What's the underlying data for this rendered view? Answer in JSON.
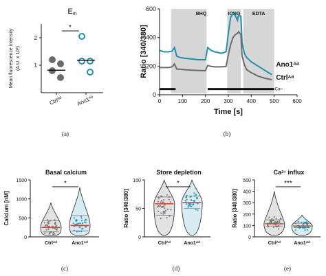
{
  "colors": {
    "ctrl": "#6b6b6b",
    "ano1": "#1f8fb0",
    "shade": "#d6d6d6",
    "median": "#e0403a",
    "axis": "#111111"
  },
  "chart_data": [
    {
      "panel": "(a)",
      "type": "scatter",
      "title": "E",
      "title_sub": "m",
      "ylabel": "Mean fluorescence intensity",
      "ylabel_unit_prefix": "(A.U. x 10",
      "ylabel_unit_exp": "4",
      "ylabel_unit_suffix": ")",
      "ylim": [
        0,
        2.5
      ],
      "yticks": [
        1,
        2
      ],
      "categories": [
        "Ctrl",
        "Ano1"
      ],
      "category_sup": "Ad",
      "series": [
        {
          "category": "Ctrl",
          "values": [
            1.2,
            1.05,
            0.8,
            0.55
          ],
          "median": 0.82,
          "style": "filled"
        },
        {
          "category": "Ano1",
          "values": [
            2.05,
            1.15,
            1.15,
            0.75
          ],
          "median": 1.18,
          "style": "open"
        }
      ],
      "significance": "*"
    },
    {
      "panel": "(b)",
      "type": "line",
      "xlabel": "Time [s]",
      "ylabel": "Ratio [340/380]",
      "xlim": [
        0,
        600
      ],
      "ylim": [
        0,
        600
      ],
      "xticks": [
        0,
        100,
        200,
        300,
        400,
        500,
        600
      ],
      "yticks": [
        0,
        200,
        400,
        600
      ],
      "shaded": [
        {
          "label": "BHQ",
          "from": 50,
          "to": 205
        },
        {
          "label": "IONO",
          "from": 295,
          "to": 355
        },
        {
          "label": "EDTA",
          "from": 365,
          "to": 500
        }
      ],
      "calcium_bars": [
        {
          "from": 0,
          "to": 70
        },
        {
          "from": 210,
          "to": 500
        }
      ],
      "calcium_label": "Ca",
      "calcium_sup": "2+",
      "x": [
        0,
        20,
        40,
        55,
        65,
        75,
        90,
        110,
        140,
        170,
        200,
        210,
        225,
        240,
        270,
        290,
        300,
        310,
        320,
        330,
        340,
        345,
        355,
        360,
        370,
        380,
        400,
        430,
        460,
        490
      ],
      "series": [
        {
          "name": "Ano1",
          "name_sup": "Ad",
          "values": [
            310,
            300,
            300,
            305,
            330,
            270,
            260,
            255,
            250,
            245,
            245,
            330,
            310,
            300,
            290,
            300,
            430,
            540,
            570,
            555,
            520,
            560,
            545,
            360,
            290,
            260,
            230,
            200,
            170,
            140
          ]
        },
        {
          "name": "Ctrl",
          "name_sup": "Ad",
          "values": [
            190,
            190,
            190,
            195,
            215,
            180,
            178,
            175,
            172,
            170,
            168,
            205,
            198,
            195,
            195,
            198,
            280,
            350,
            400,
            420,
            430,
            440,
            420,
            270,
            210,
            175,
            155,
            130,
            115,
            105
          ]
        }
      ]
    },
    {
      "panel": "(c)",
      "type": "violin",
      "title": "Basal calcium",
      "ylabel": "Calcium [nM]",
      "ylim": [
        0,
        1500
      ],
      "yticks": [
        0,
        500,
        1000,
        1500
      ],
      "categories": [
        "Ctrl",
        "Ano1"
      ],
      "category_sup": "Ad",
      "series": [
        {
          "category": "Ctrl",
          "median": 250,
          "q1": 130,
          "q3": 420,
          "max": 900
        },
        {
          "category": "Ano1",
          "median": 300,
          "q1": 160,
          "q3": 560,
          "max": 1300
        }
      ],
      "significance": "*"
    },
    {
      "panel": "(d)",
      "type": "violin",
      "title": "Store depletion",
      "ylabel": "Ratio [340/380]",
      "ylim": [
        0,
        100
      ],
      "yticks": [
        0,
        50,
        100
      ],
      "categories": [
        "Ctrl",
        "Ano1"
      ],
      "category_sup": "Ad",
      "series": [
        {
          "category": "Ctrl",
          "median": 58,
          "q1": 38,
          "q3": 70,
          "max": 100
        },
        {
          "category": "Ano1",
          "median": 60,
          "q1": 50,
          "q3": 72,
          "max": 100
        }
      ],
      "significance": "*"
    },
    {
      "panel": "(e)",
      "type": "violin",
      "title": "Ca",
      "title_sup": "2+",
      "title_suffix": " influx",
      "ylabel": "Ratio [340/380]",
      "ylim": [
        0,
        500
      ],
      "yticks": [
        0,
        100,
        200,
        300,
        400,
        500
      ],
      "categories": [
        "Ctrl",
        "Ano1"
      ],
      "category_sup": "Ad",
      "series": [
        {
          "category": "Ctrl",
          "median": 115,
          "q1": 95,
          "q3": 150,
          "max": 400
        },
        {
          "category": "Ano1",
          "median": 95,
          "q1": 80,
          "q3": 120,
          "max": 190
        }
      ],
      "significance": "***"
    }
  ]
}
